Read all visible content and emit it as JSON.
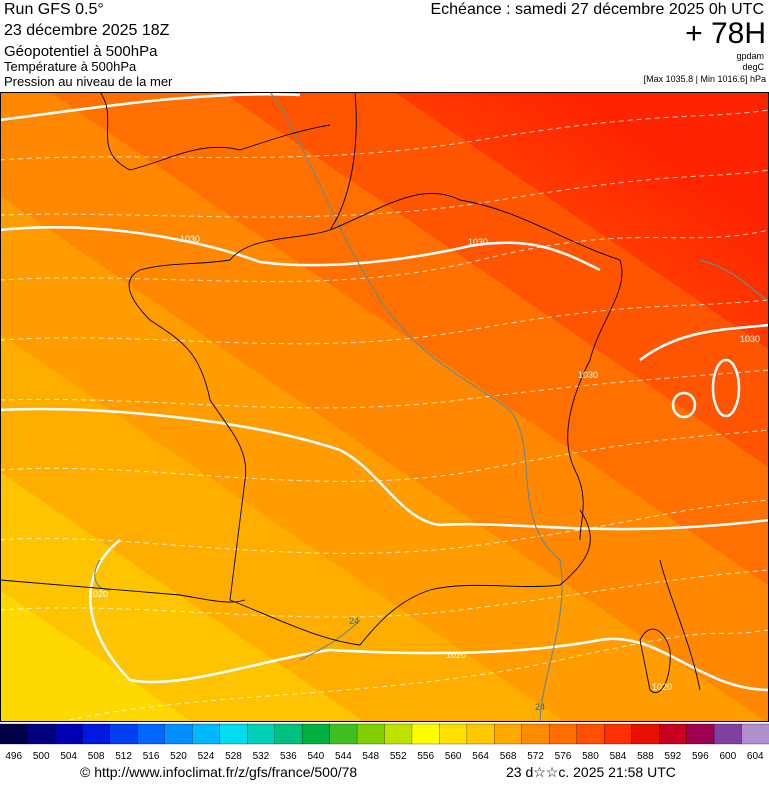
{
  "header": {
    "left": [
      "Run GFS 0.5°",
      "23 décembre 2025 18Z",
      "Géopotentiel à 500hPa",
      "Température à 500hPa",
      "Pression au niveau de la mer"
    ],
    "echeance": "Echéance : samedi 27 décembre 2025 0h UTC",
    "lead": "+ 78H",
    "units": [
      "gpdam",
      "degC"
    ],
    "range": "[Max 1035.8 | Min 1016.6] hPa"
  },
  "map": {
    "contour_labels": [
      "1030",
      "1030",
      "1030",
      "1030",
      "1020",
      "1020",
      "1020",
      "24",
      "24"
    ]
  },
  "scale": {
    "labels": [
      496,
      500,
      504,
      508,
      512,
      516,
      520,
      524,
      528,
      532,
      536,
      540,
      544,
      548,
      552,
      556,
      560,
      564,
      568,
      572,
      576,
      580,
      584,
      588,
      592,
      596,
      600,
      604
    ],
    "colors": [
      "#00004a",
      "#000080",
      "#0000b4",
      "#0018e0",
      "#0040f0",
      "#0068ff",
      "#0090ff",
      "#00b8ff",
      "#00dcf0",
      "#00d0b8",
      "#00c080",
      "#00b040",
      "#40c020",
      "#80d000",
      "#c0e000",
      "#ffff00",
      "#ffe000",
      "#ffc800",
      "#ffa800",
      "#ff8c00",
      "#ff6e00",
      "#ff5000",
      "#ff3000",
      "#e81000",
      "#c80020",
      "#a00050",
      "#8040a0",
      "#b090cc"
    ]
  },
  "footer": {
    "url": "© http://www.infoclimat.fr/z/gfs/france/500/78",
    "date": "23 d☆☆c. 2025 21:58 UTC"
  }
}
